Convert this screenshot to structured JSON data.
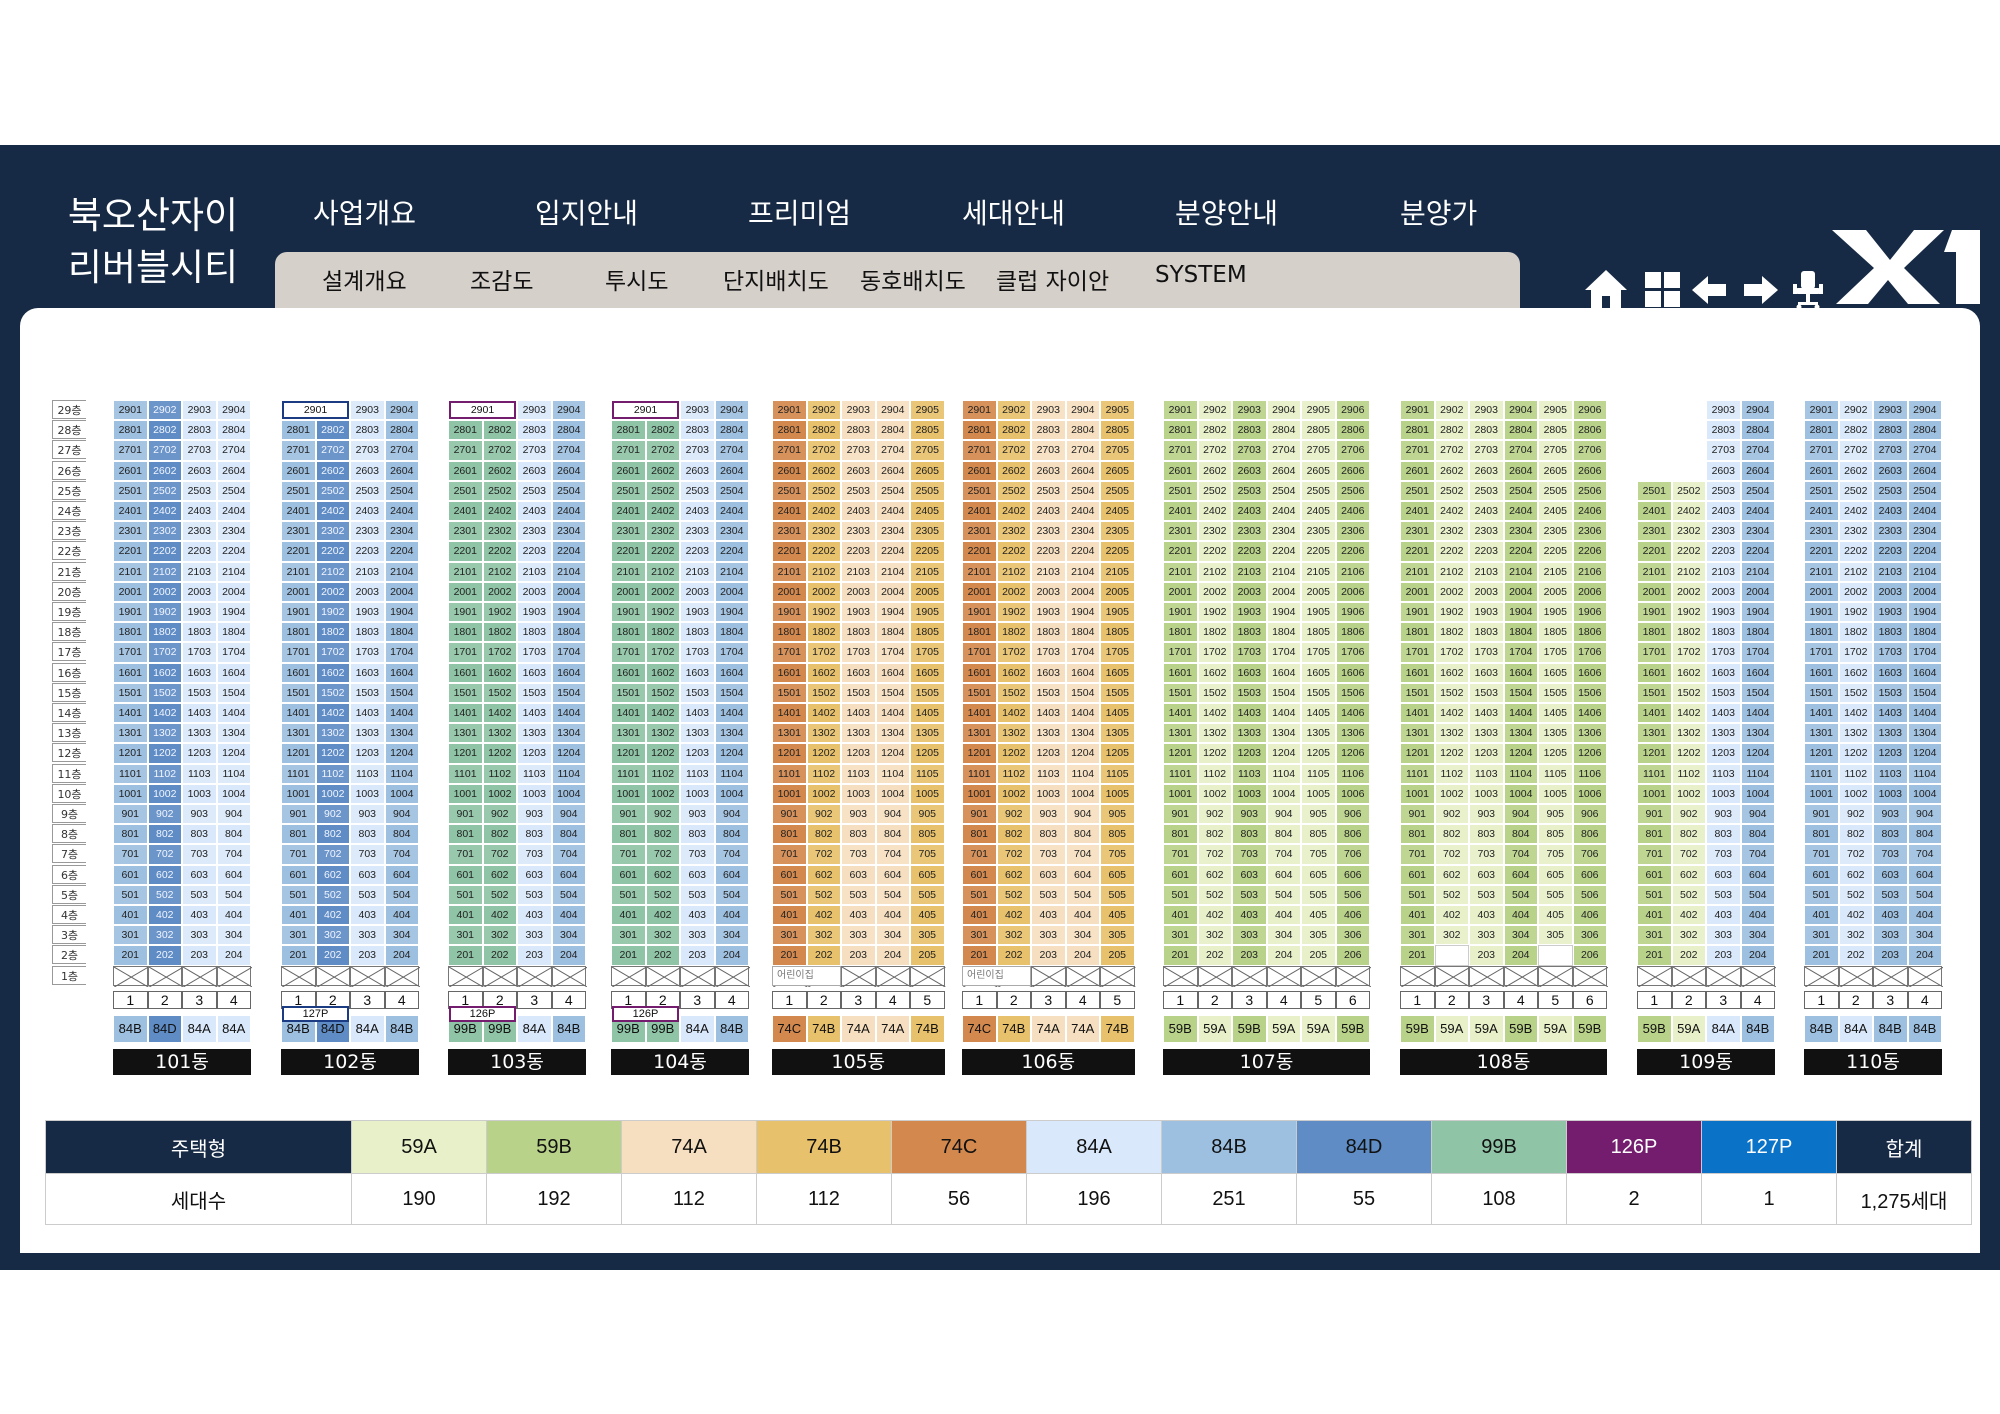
{
  "header": {
    "title_line1": "북오산자이",
    "title_line2": "리버블시티",
    "main_menu": [
      "사업개요",
      "입지안내",
      "프리미엄",
      "세대안내",
      "분양안내",
      "분양가"
    ],
    "sub_menu": [
      "설계개요",
      "조감도",
      "투시도",
      "단지배치도",
      "동호배치도",
      "클럽 자이안",
      "SYSTEM"
    ],
    "toolbar_icons": [
      "home-icon",
      "grid-icon",
      "arrow-left-icon",
      "arrow-right-icon",
      "chair-icon",
      "xi-logo"
    ],
    "brand_logo": "XI"
  },
  "floor_labels": [
    "29층",
    "28층",
    "27층",
    "26층",
    "25층",
    "24층",
    "23층",
    "22층",
    "21층",
    "20층",
    "19층",
    "18층",
    "17층",
    "16층",
    "15층",
    "14층",
    "13층",
    "12층",
    "11층",
    "10층",
    "9층",
    "8층",
    "7층",
    "6층",
    "5층",
    "4층",
    "3층",
    "2층",
    "1층"
  ],
  "type_colors": {
    "59A": "#e7f0c8",
    "59B": "#b9d28a",
    "74A": "#f6dfc0",
    "74B": "#e8c16c",
    "74C": "#d3894e",
    "84A": "#d9e8fa",
    "84B": "#9ec0e0",
    "84D": "#5f8cc4",
    "99B": "#8fc4a6",
    "126P": "#741d6f",
    "127P": "#0a72c7"
  },
  "buildings": [
    {
      "name": "101동",
      "units": 4,
      "top": 29,
      "col_types": [
        "84B",
        "84D",
        "84A",
        "84A"
      ],
      "special": null,
      "missing": [],
      "ground_label": ""
    },
    {
      "name": "102동",
      "units": 4,
      "top": 29,
      "col_types": [
        "84B",
        "84D",
        "84A",
        "84B"
      ],
      "special": {
        "unit": "2901",
        "type": "127P",
        "color": "#1b3b82"
      },
      "missing": [],
      "ground_label": ""
    },
    {
      "name": "103동",
      "units": 4,
      "top": 29,
      "col_types": [
        "99B",
        "99B",
        "84A",
        "84B"
      ],
      "special": {
        "unit": "2901",
        "type": "126P",
        "color": "#741d6f"
      },
      "missing": [],
      "ground_label": ""
    },
    {
      "name": "104동",
      "units": 4,
      "top": 29,
      "col_types": [
        "99B",
        "99B",
        "84A",
        "84B"
      ],
      "special": {
        "unit": "2901",
        "type": "126P",
        "color": "#741d6f"
      },
      "missing": [],
      "ground_label": ""
    },
    {
      "name": "105동",
      "units": 5,
      "top": 29,
      "col_types": [
        "74C",
        "74B",
        "74A",
        "74A",
        "74B"
      ],
      "special": null,
      "missing": [],
      "ground_label": "어린이집"
    },
    {
      "name": "106동",
      "units": 5,
      "top": 29,
      "col_types": [
        "74C",
        "74B",
        "74A",
        "74A",
        "74B"
      ],
      "special": null,
      "missing": [],
      "ground_label": "어린이집"
    },
    {
      "name": "107동",
      "units": 6,
      "top": 29,
      "col_types": [
        "59B",
        "59A",
        "59B",
        "59A",
        "59A",
        "59B"
      ],
      "special": null,
      "missing": [],
      "ground_label": ""
    },
    {
      "name": "108동",
      "units": 6,
      "top": 29,
      "col_types": [
        "59B",
        "59A",
        "59A",
        "59B",
        "59A",
        "59B"
      ],
      "special": null,
      "missing": [
        "202",
        "205"
      ],
      "ground_label": ""
    },
    {
      "name": "109동",
      "units": 4,
      "top": 29,
      "col_types": [
        "59B",
        "59A",
        "84A",
        "84B"
      ],
      "special": null,
      "missing": [],
      "ground_label": ""
    },
    {
      "name": "110동",
      "units": 4,
      "top": 29,
      "col_types": [
        "84B",
        "84A",
        "84B",
        "84B"
      ],
      "special": null,
      "missing": [],
      "ground_label": ""
    }
  ],
  "building_109_partial_top": 25,
  "legend": {
    "header_label": "주택형",
    "count_label": "세대수",
    "types": [
      "59A",
      "59B",
      "74A",
      "74B",
      "74C",
      "84A",
      "84B",
      "84D",
      "99B",
      "126P",
      "127P"
    ],
    "counts": [
      "190",
      "192",
      "112",
      "112",
      "56",
      "196",
      "251",
      "55",
      "108",
      "2",
      "1"
    ],
    "total_label": "합계",
    "total_value": "1,275세대"
  }
}
